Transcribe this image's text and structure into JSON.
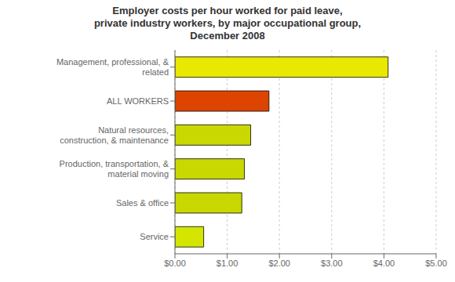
{
  "chart_data": {
    "type": "bar",
    "orientation": "horizontal",
    "title": "Employer costs per hour worked for paid leave,\nprivate industry workers, by major occupational group,\nDecember 2008",
    "categories": [
      "Service",
      "Sales & office",
      "Production, transportation, & material moving",
      "Natural resources, construction, & maintenance",
      "ALL WORKERS",
      "Management, professional, & related"
    ],
    "values": [
      0.55,
      1.28,
      1.33,
      1.45,
      1.8,
      4.08
    ],
    "colors": [
      "#d4e600",
      "#c8d800",
      "#c8d800",
      "#c8d800",
      "#dd4400",
      "#e8e800"
    ],
    "xlim": [
      0,
      5.0
    ],
    "xticks": [
      {
        "value": 0.0,
        "label": "$0.00"
      },
      {
        "value": 1.0,
        "label": "$1.00"
      },
      {
        "value": 2.0,
        "label": "$2.00"
      },
      {
        "value": 3.0,
        "label": "$3.00"
      },
      {
        "value": 4.0,
        "label": "$4.00"
      },
      {
        "value": 5.0,
        "label": "$5.00"
      }
    ],
    "grid": true
  }
}
